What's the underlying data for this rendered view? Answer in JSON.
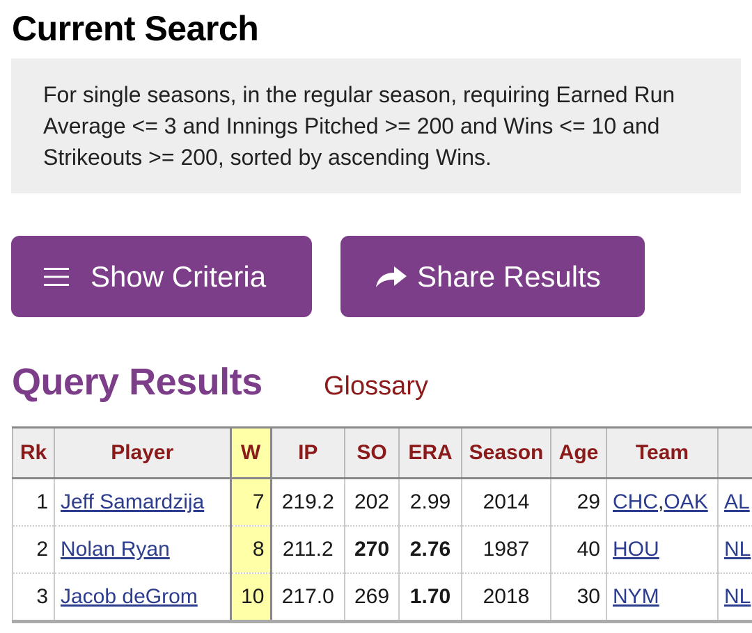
{
  "current_search": {
    "title": "Current Search",
    "criteria_text": "For single seasons, in the regular season, requiring Earned Run Average <= 3 and Innings Pitched >= 200 and Wins <= 10 and Strikeouts >= 200, sorted by ascending Wins."
  },
  "buttons": {
    "show_criteria": {
      "label": "Show Criteria",
      "icon": "hamburger-menu-icon"
    },
    "share_results": {
      "label": "Share Results",
      "icon": "share-arrow-icon"
    }
  },
  "results": {
    "heading": "Query Results",
    "glossary_label": "Glossary",
    "columns": [
      "Rk",
      "Player",
      "W",
      "IP",
      "SO",
      "ERA",
      "Season",
      "Age",
      "Team",
      ""
    ],
    "sorted_column": "W",
    "rows": [
      {
        "rk": "1",
        "player": "Jeff Samardzija",
        "w": "7",
        "ip": "219.2",
        "so": "202",
        "era": "2.99",
        "season": "2014",
        "age": "29",
        "team_a": "CHC",
        "team_sep": ",",
        "team_b": "OAK",
        "lg": "AL"
      },
      {
        "rk": "2",
        "player": "Nolan Ryan",
        "w": "8",
        "ip": "211.2",
        "so": "270",
        "era": "2.76",
        "season": "1987",
        "age": "40",
        "team_a": "HOU",
        "team_sep": "",
        "team_b": "",
        "lg": "NL"
      },
      {
        "rk": "3",
        "player": "Jacob deGrom",
        "w": "10",
        "ip": "217.0",
        "so": "269",
        "era": "1.70",
        "season": "2018",
        "age": "30",
        "team_a": "NYM",
        "team_sep": "",
        "team_b": "",
        "lg": "NL"
      }
    ]
  },
  "colors": {
    "accent_purple": "#7c3d89",
    "header_text": "#8b1a1a",
    "link_blue": "#2c3d8f",
    "sort_highlight": "#ffffa8"
  }
}
